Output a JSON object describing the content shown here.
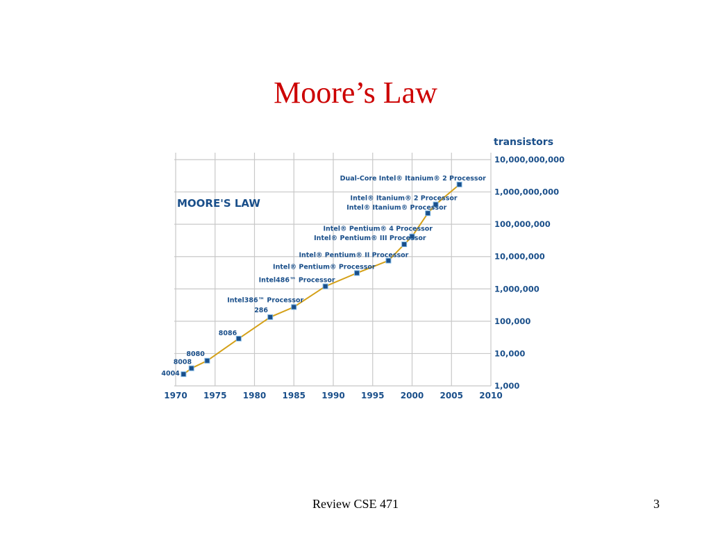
{
  "slide": {
    "title": "Moore’s Law",
    "footer": "Review CSE 471",
    "page_number": "3"
  },
  "chart_data": {
    "type": "line",
    "title": "MOORE'S LAW",
    "ylabel": "transistors",
    "xlabel": "",
    "y_scale": "log",
    "x_ticks": [
      "1970",
      "1975",
      "1980",
      "1985",
      "1990",
      "1995",
      "2000",
      "2005",
      "2010"
    ],
    "y_ticks": [
      "1,000",
      "10,000",
      "100,000",
      "1,000,000",
      "10,000,000",
      "100,000,000",
      "1,000,000,000",
      "10,000,000,000"
    ],
    "xlim": [
      1970,
      2010
    ],
    "ylim": [
      1000,
      10000000000
    ],
    "grid": true,
    "line_color": "#d4a017",
    "marker_color": "#1a4f8a",
    "label_color": "#1a4f8a",
    "points": [
      {
        "label": "4004",
        "x": 1971,
        "y": 2300
      },
      {
        "label": "8008",
        "x": 1972,
        "y": 3500
      },
      {
        "label": "8080",
        "x": 1974,
        "y": 6000
      },
      {
        "label": "8086",
        "x": 1978,
        "y": 29000
      },
      {
        "label": "286",
        "x": 1982,
        "y": 134000
      },
      {
        "label": "Intel386™ Processor",
        "x": 1985,
        "y": 275000
      },
      {
        "label": "Intel486™ Processor",
        "x": 1989,
        "y": 1200000
      },
      {
        "label": "Intel® Pentium® Processor",
        "x": 1993,
        "y": 3100000
      },
      {
        "label": "Intel® Pentium® II Processor",
        "x": 1997,
        "y": 7500000
      },
      {
        "label": "Intel® Pentium® III Processor",
        "x": 1999,
        "y": 24000000
      },
      {
        "label": "Intel® Pentium® 4 Processor",
        "x": 2000,
        "y": 42000000
      },
      {
        "label": "Intel® Itanium® Processor",
        "x": 2002,
        "y": 220000000
      },
      {
        "label": "Intel® Itanium® 2 Processor",
        "x": 2003,
        "y": 410000000
      },
      {
        "label": "Dual-Core Intel® Itanium® 2 Processor",
        "x": 2006,
        "y": 1700000000
      }
    ]
  }
}
